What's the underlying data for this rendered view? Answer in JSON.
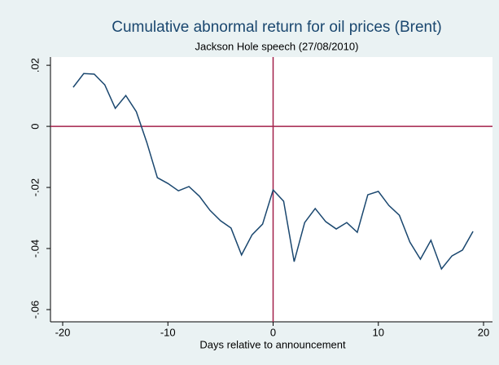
{
  "chart_data": {
    "type": "line",
    "title": "Cumulative abnormal return for oil prices (Brent)",
    "subtitle": "Jackson Hole speech (27/08/2010)",
    "x_label": "Days relative to announcement",
    "x": [
      -19,
      -18,
      -17,
      -16,
      -15,
      -14,
      -13,
      -12,
      -11,
      -10,
      -9,
      -8,
      -7,
      -6,
      -5,
      -4,
      -3,
      -2,
      -1,
      0,
      1,
      2,
      3,
      4,
      5,
      6,
      7,
      8,
      9,
      10,
      11,
      12,
      13,
      14,
      15,
      16,
      17,
      18,
      19
    ],
    "values": [
      0.0128,
      0.0173,
      0.0171,
      0.0136,
      0.0059,
      0.0101,
      0.0048,
      -0.0053,
      -0.0168,
      -0.0187,
      -0.0211,
      -0.0197,
      -0.0229,
      -0.0275,
      -0.0309,
      -0.0333,
      -0.0421,
      -0.0355,
      -0.032,
      -0.0208,
      -0.0245,
      -0.0443,
      -0.0315,
      -0.0269,
      -0.0312,
      -0.0336,
      -0.0315,
      -0.0347,
      -0.0224,
      -0.0213,
      -0.0259,
      -0.0291,
      -0.0379,
      -0.0435,
      -0.0373,
      -0.0467,
      -0.0424,
      -0.0405,
      -0.0344
    ],
    "color": "#1a476f",
    "reference_lines": {
      "x": 0,
      "y": 0,
      "color": "#a3204a"
    },
    "xlim": [
      -21.16,
      20.85
    ],
    "xticks": [
      -20,
      -10,
      0,
      10,
      20
    ],
    "ylim": [
      -0.064,
      0.0227
    ],
    "yticks": [
      {
        "value": 0.02,
        "label": ".02"
      },
      0,
      {
        "value": -0.02,
        "label": "-.02"
      },
      {
        "value": -0.04,
        "label": "-.04"
      },
      {
        "value": -0.06,
        "label": "-.06"
      }
    ]
  }
}
